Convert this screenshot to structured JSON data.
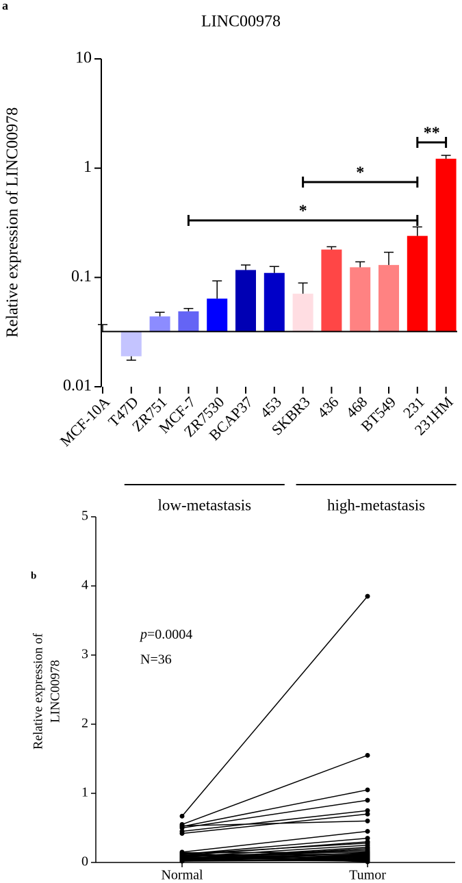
{
  "chart_data": [
    {
      "type": "bar",
      "panel_label": "a",
      "title": "LINC00978",
      "y_label": "Relative expression of LINC00978",
      "log_y": true,
      "ylim": [
        0.01,
        10
      ],
      "yticks": [
        0.01,
        0.1,
        1,
        10
      ],
      "baseline": 0.032,
      "categories": [
        "MCF-10A",
        "T47D",
        "ZR751",
        "MCF-7",
        "ZR7530",
        "BCAP37",
        "453",
        "SKBR3",
        "436",
        "468",
        "BT549",
        "231",
        "231HM"
      ],
      "values": [
        0.032,
        0.019,
        0.044,
        0.049,
        0.064,
        0.117,
        0.11,
        0.071,
        0.18,
        0.124,
        0.13,
        0.24,
        1.22
      ],
      "errors": [
        0.005,
        0.0015,
        0.004,
        0.003,
        0.029,
        0.013,
        0.016,
        0.018,
        0.011,
        0.015,
        0.04,
        0.05,
        0.09
      ],
      "colors": [
        "#ffffff",
        "#c4c4ff",
        "#8c8cff",
        "#6464f5",
        "#0000ff",
        "#0000b4",
        "#0000c8",
        "#ffdde2",
        "#ff4646",
        "#ff8282",
        "#ff8282",
        "#ff0000",
        "#ff0000"
      ],
      "annotations": [
        {
          "text": "*",
          "from": "MCF-7",
          "to": "231"
        },
        {
          "text": "*",
          "from": "SKBR3",
          "to": "231"
        },
        {
          "text": "**",
          "from": "231",
          "to": "231HM"
        }
      ],
      "groups": [
        {
          "label": "low-metastasis",
          "from": "T47D",
          "to": "453"
        },
        {
          "label": "high-metastasis",
          "from": "SKBR3",
          "to": "231HM"
        }
      ]
    },
    {
      "type": "paired",
      "panel_label": "b",
      "y_label": [
        "Relative expression of",
        "LINC00978"
      ],
      "ylim": [
        0,
        5
      ],
      "yticks": [
        0,
        1,
        2,
        3,
        4,
        5
      ],
      "categories": [
        "Normal",
        "Tumor"
      ],
      "stat": {
        "symbol": "p",
        "value_label": "=0.0004"
      },
      "n_label": "N=36",
      "color": "#000000",
      "values": [
        [
          0.67,
          3.85
        ],
        [
          0.55,
          1.55
        ],
        [
          0.52,
          1.05
        ],
        [
          0.5,
          0.9
        ],
        [
          0.45,
          0.75
        ],
        [
          0.42,
          0.7
        ],
        [
          0.53,
          0.6
        ],
        [
          0.15,
          0.45
        ],
        [
          0.12,
          0.35
        ],
        [
          0.1,
          0.3
        ],
        [
          0.08,
          0.25
        ],
        [
          0.05,
          0.2
        ],
        [
          0.14,
          0.15
        ],
        [
          0.11,
          0.12
        ],
        [
          0.09,
          0.1
        ],
        [
          0.07,
          0.08
        ],
        [
          0.06,
          0.05
        ],
        [
          0.04,
          0.04
        ],
        [
          0.13,
          0.03
        ],
        [
          0.1,
          0.02
        ],
        [
          0.08,
          0.16
        ],
        [
          0.05,
          0.22
        ],
        [
          0.03,
          0.1
        ],
        [
          0.02,
          0.06
        ],
        [
          0.12,
          0.28
        ],
        [
          0.09,
          0.13
        ],
        [
          0.07,
          0.07
        ],
        [
          0.05,
          0.09
        ],
        [
          0.04,
          0.02
        ],
        [
          0.11,
          0.05
        ],
        [
          0.06,
          0.11
        ],
        [
          0.03,
          0.04
        ],
        [
          0.02,
          0.03
        ],
        [
          0.08,
          0.18
        ],
        [
          0.1,
          0.01
        ],
        [
          0.04,
          0.14
        ]
      ]
    }
  ]
}
